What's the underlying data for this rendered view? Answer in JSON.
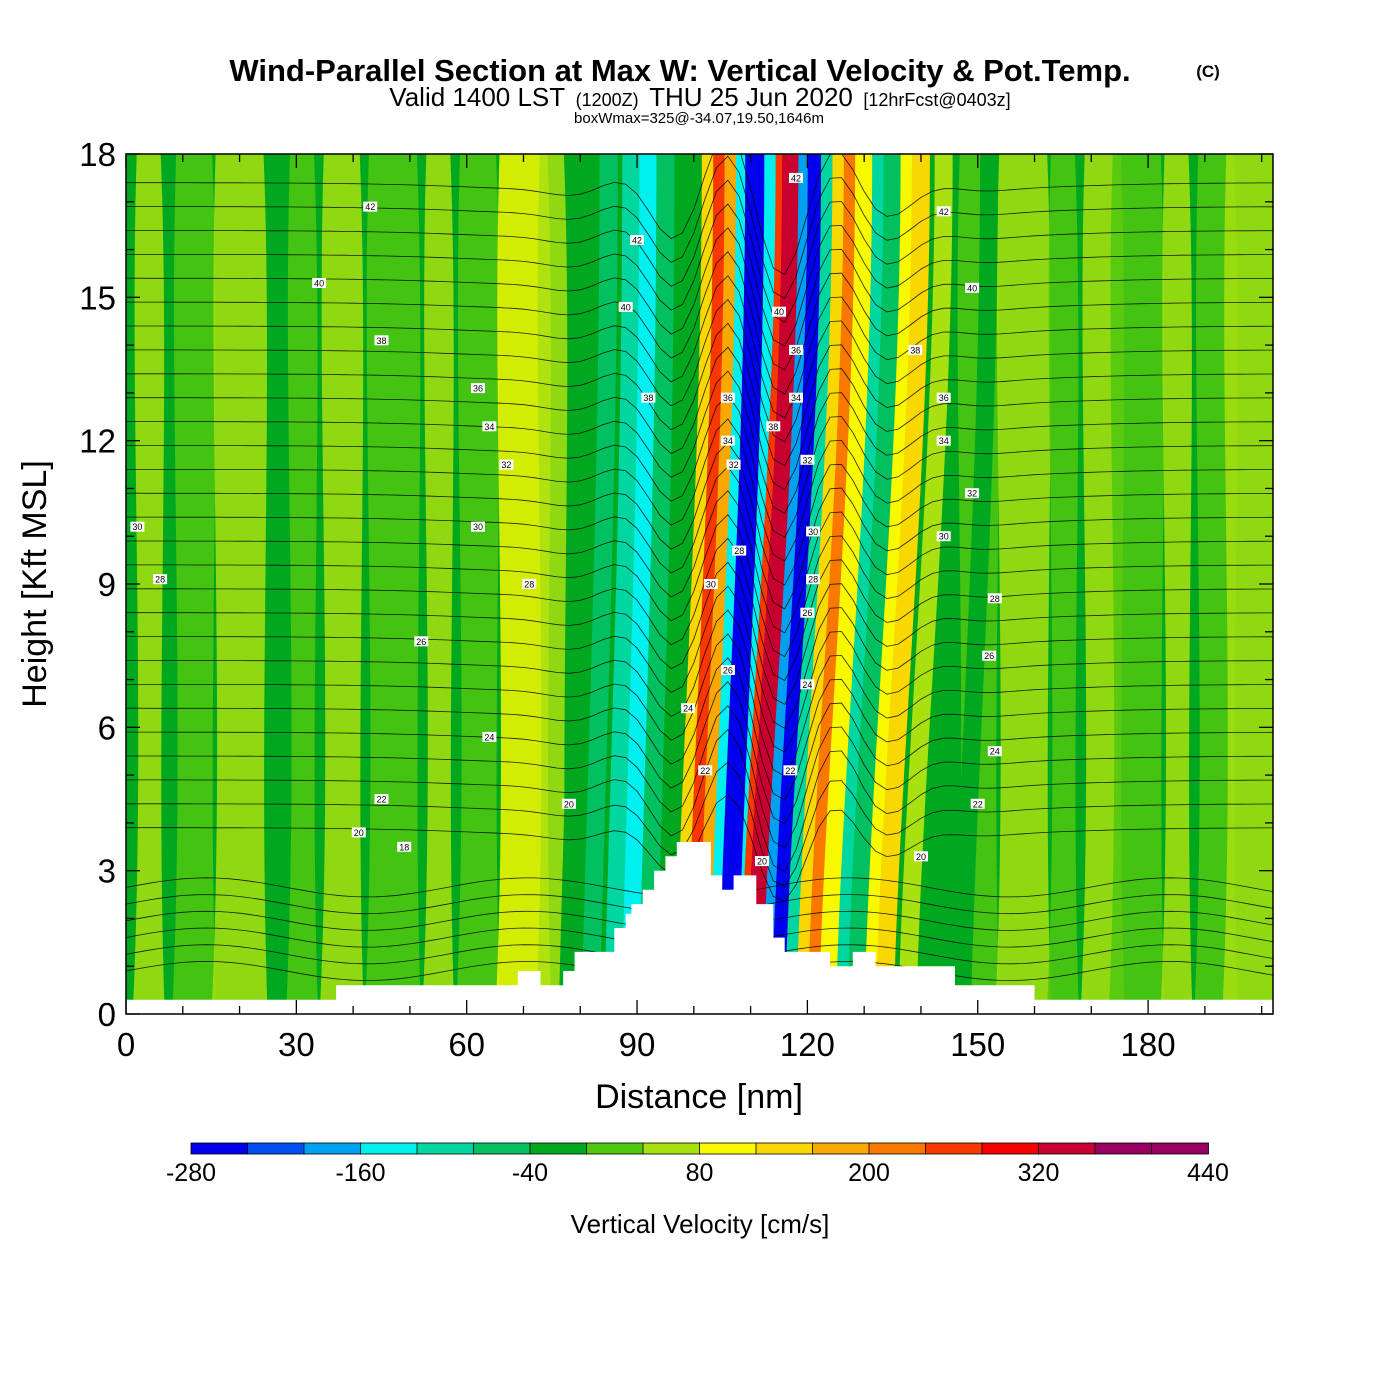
{
  "title": {
    "main": "Wind-Parallel Section at Max W: Vertical Velocity & Pot.Temp.",
    "copyright": "(C)",
    "valid_prefix": "Valid 1400 LST",
    "zulu": "(1200Z)",
    "date": "THU 25 Jun 2020",
    "forecast": "[12hrFcst@0403z]",
    "boxwmax": "boxWmax=325@-34.07,19.50,1646m"
  },
  "colors": {
    "levels": [
      "#0000ee",
      "#0050f0",
      "#00a0f0",
      "#00f0f0",
      "#00d7a0",
      "#00c060",
      "#00a820",
      "#50c810",
      "#a8e010",
      "#f8f800",
      "#f8d800",
      "#f8a800",
      "#f87800",
      "#f83800",
      "#f80000",
      "#c80030",
      "#980060"
    ]
  },
  "chart_data": {
    "type": "heatmap",
    "xlabel": "Distance [nm]",
    "ylabel": "Height [Kft MSL]",
    "xlim": [
      0,
      202
    ],
    "ylim": [
      0,
      18
    ],
    "xticks": [
      "0",
      "30",
      "60",
      "90",
      "120",
      "150",
      "180"
    ],
    "xtick_values": [
      0,
      30,
      60,
      90,
      120,
      150,
      180
    ],
    "yticks": [
      "0",
      "3",
      "6",
      "9",
      "12",
      "15",
      "18"
    ],
    "ytick_values": [
      0,
      3,
      6,
      9,
      12,
      15,
      18
    ],
    "colorbar": {
      "label": "Vertical Velocity [cm/s]",
      "levels": [
        -280,
        -240,
        -200,
        -160,
        -120,
        -80,
        -40,
        0,
        40,
        80,
        120,
        160,
        200,
        240,
        280,
        320,
        360,
        400,
        440
      ],
      "tick_labels": [
        "-280",
        "-160",
        "-40",
        "80",
        "200",
        "320",
        "440"
      ],
      "tick_values": [
        -280,
        -160,
        -40,
        80,
        200,
        320,
        440
      ]
    },
    "bands": [
      {
        "x": 81,
        "w": -40,
        "shift": 2
      },
      {
        "x": 85,
        "w": -80,
        "shift": 2
      },
      {
        "x": 89,
        "w": -120,
        "shift": 2
      },
      {
        "x": 92,
        "w": -160,
        "shift": 2
      },
      {
        "x": 95,
        "w": -80,
        "shift": 2
      },
      {
        "x": 103,
        "w": 120,
        "shift": 3
      },
      {
        "x": 105,
        "w": 240,
        "shift": 3
      },
      {
        "x": 107,
        "w": 160,
        "shift": 3
      },
      {
        "x": 109,
        "w": -160,
        "shift": 3
      },
      {
        "x": 111,
        "w": -280,
        "shift": 3
      },
      {
        "x": 114,
        "w": -160,
        "shift": 3
      },
      {
        "x": 116,
        "w": 240,
        "shift": 4
      },
      {
        "x": 117.5,
        "w": 320,
        "shift": 4
      },
      {
        "x": 120,
        "w": -200,
        "shift": 4
      },
      {
        "x": 122,
        "w": -280,
        "shift": 4
      },
      {
        "x": 124,
        "w": -120,
        "shift": 4
      },
      {
        "x": 126,
        "w": 120,
        "shift": 4
      },
      {
        "x": 128,
        "w": 200,
        "shift": 4
      },
      {
        "x": 130,
        "w": 80,
        "shift": 4
      },
      {
        "x": 133,
        "w": -120,
        "shift": 4
      },
      {
        "x": 135,
        "w": -80,
        "shift": 4
      },
      {
        "x": 138,
        "w": 80,
        "shift": 4
      },
      {
        "x": 140,
        "w": 120,
        "shift": 4
      },
      {
        "x": 144,
        "w": 40,
        "shift": 4
      },
      {
        "x": 152,
        "w": -40,
        "shift": 3
      }
    ],
    "terrain_kft": [
      [
        0,
        0.3
      ],
      [
        37,
        0.3
      ],
      [
        37,
        0.6
      ],
      [
        69,
        0.6
      ],
      [
        69,
        0.9
      ],
      [
        73,
        0.9
      ],
      [
        73,
        0.6
      ],
      [
        77,
        0.6
      ],
      [
        77,
        0.9
      ],
      [
        79,
        0.9
      ],
      [
        79,
        1.3
      ],
      [
        86,
        1.3
      ],
      [
        86,
        1.8
      ],
      [
        88,
        1.8
      ],
      [
        88,
        2.1
      ],
      [
        89,
        2.1
      ],
      [
        89,
        2.3
      ],
      [
        91,
        2.3
      ],
      [
        91,
        2.6
      ],
      [
        93,
        2.6
      ],
      [
        93,
        3.0
      ],
      [
        95,
        3.0
      ],
      [
        95,
        3.3
      ],
      [
        97,
        3.3
      ],
      [
        97,
        3.6
      ],
      [
        103,
        3.6
      ],
      [
        103,
        2.9
      ],
      [
        105,
        2.9
      ],
      [
        105,
        2.6
      ],
      [
        107,
        2.6
      ],
      [
        107,
        2.9
      ],
      [
        111,
        2.9
      ],
      [
        111,
        2.3
      ],
      [
        114,
        2.3
      ],
      [
        114,
        1.6
      ],
      [
        116,
        1.6
      ],
      [
        116,
        1.3
      ],
      [
        124,
        1.3
      ],
      [
        124,
        1.0
      ],
      [
        128,
        1.0
      ],
      [
        128,
        1.3
      ],
      [
        132,
        1.3
      ],
      [
        132,
        1.0
      ],
      [
        146,
        1.0
      ],
      [
        146,
        0.6
      ],
      [
        160,
        0.6
      ],
      [
        160,
        0.3
      ],
      [
        202,
        0.3
      ]
    ],
    "theta_levels": [
      18,
      20,
      22,
      24,
      26,
      28,
      30,
      32,
      34,
      36,
      38,
      40,
      42
    ],
    "theta_labels": [
      {
        "text": "42",
        "x": 43,
        "y": 16.9
      },
      {
        "text": "40",
        "x": 34,
        "y": 15.3
      },
      {
        "text": "38",
        "x": 45,
        "y": 14.1
      },
      {
        "text": "36",
        "x": 62,
        "y": 13.1
      },
      {
        "text": "34",
        "x": 64,
        "y": 12.3
      },
      {
        "text": "32",
        "x": 67,
        "y": 11.5
      },
      {
        "text": "30",
        "x": 2,
        "y": 10.2
      },
      {
        "text": "30",
        "x": 62,
        "y": 10.2
      },
      {
        "text": "28",
        "x": 6,
        "y": 9.1
      },
      {
        "text": "28",
        "x": 71,
        "y": 9.0
      },
      {
        "text": "26",
        "x": 52,
        "y": 7.8
      },
      {
        "text": "24",
        "x": 64,
        "y": 5.8
      },
      {
        "text": "22",
        "x": 45,
        "y": 4.5
      },
      {
        "text": "20",
        "x": 41,
        "y": 3.8
      },
      {
        "text": "18",
        "x": 49,
        "y": 3.5
      },
      {
        "text": "20",
        "x": 78,
        "y": 4.4
      },
      {
        "text": "24",
        "x": 99,
        "y": 6.4
      },
      {
        "text": "22",
        "x": 102,
        "y": 5.1
      },
      {
        "text": "30",
        "x": 103,
        "y": 9.0
      },
      {
        "text": "26",
        "x": 106,
        "y": 7.2
      },
      {
        "text": "28",
        "x": 108,
        "y": 9.7
      },
      {
        "text": "32",
        "x": 107,
        "y": 11.5
      },
      {
        "text": "34",
        "x": 106,
        "y": 12.0
      },
      {
        "text": "36",
        "x": 106,
        "y": 12.9
      },
      {
        "text": "38",
        "x": 114,
        "y": 12.3
      },
      {
        "text": "40",
        "x": 115,
        "y": 14.7
      },
      {
        "text": "42",
        "x": 118,
        "y": 17.5
      },
      {
        "text": "36",
        "x": 118,
        "y": 13.9
      },
      {
        "text": "34",
        "x": 118,
        "y": 12.9
      },
      {
        "text": "32",
        "x": 120,
        "y": 11.6
      },
      {
        "text": "30",
        "x": 121,
        "y": 10.1
      },
      {
        "text": "28",
        "x": 121,
        "y": 9.1
      },
      {
        "text": "26",
        "x": 120,
        "y": 8.4
      },
      {
        "text": "24",
        "x": 120,
        "y": 6.9
      },
      {
        "text": "22",
        "x": 117,
        "y": 5.1
      },
      {
        "text": "20",
        "x": 112,
        "y": 3.2
      },
      {
        "text": "42",
        "x": 90,
        "y": 16.2
      },
      {
        "text": "40",
        "x": 88,
        "y": 14.8
      },
      {
        "text": "38",
        "x": 92,
        "y": 12.9
      },
      {
        "text": "42",
        "x": 144,
        "y": 16.8
      },
      {
        "text": "40",
        "x": 149,
        "y": 15.2
      },
      {
        "text": "38",
        "x": 139,
        "y": 13.9
      },
      {
        "text": "36",
        "x": 144,
        "y": 12.9
      },
      {
        "text": "34",
        "x": 144,
        "y": 12.0
      },
      {
        "text": "32",
        "x": 149,
        "y": 10.9
      },
      {
        "text": "30",
        "x": 144,
        "y": 10.0
      },
      {
        "text": "28",
        "x": 153,
        "y": 8.7
      },
      {
        "text": "26",
        "x": 152,
        "y": 7.5
      },
      {
        "text": "24",
        "x": 153,
        "y": 5.5
      },
      {
        "text": "22",
        "x": 150,
        "y": 4.4
      },
      {
        "text": "20",
        "x": 140,
        "y": 3.3
      }
    ]
  }
}
